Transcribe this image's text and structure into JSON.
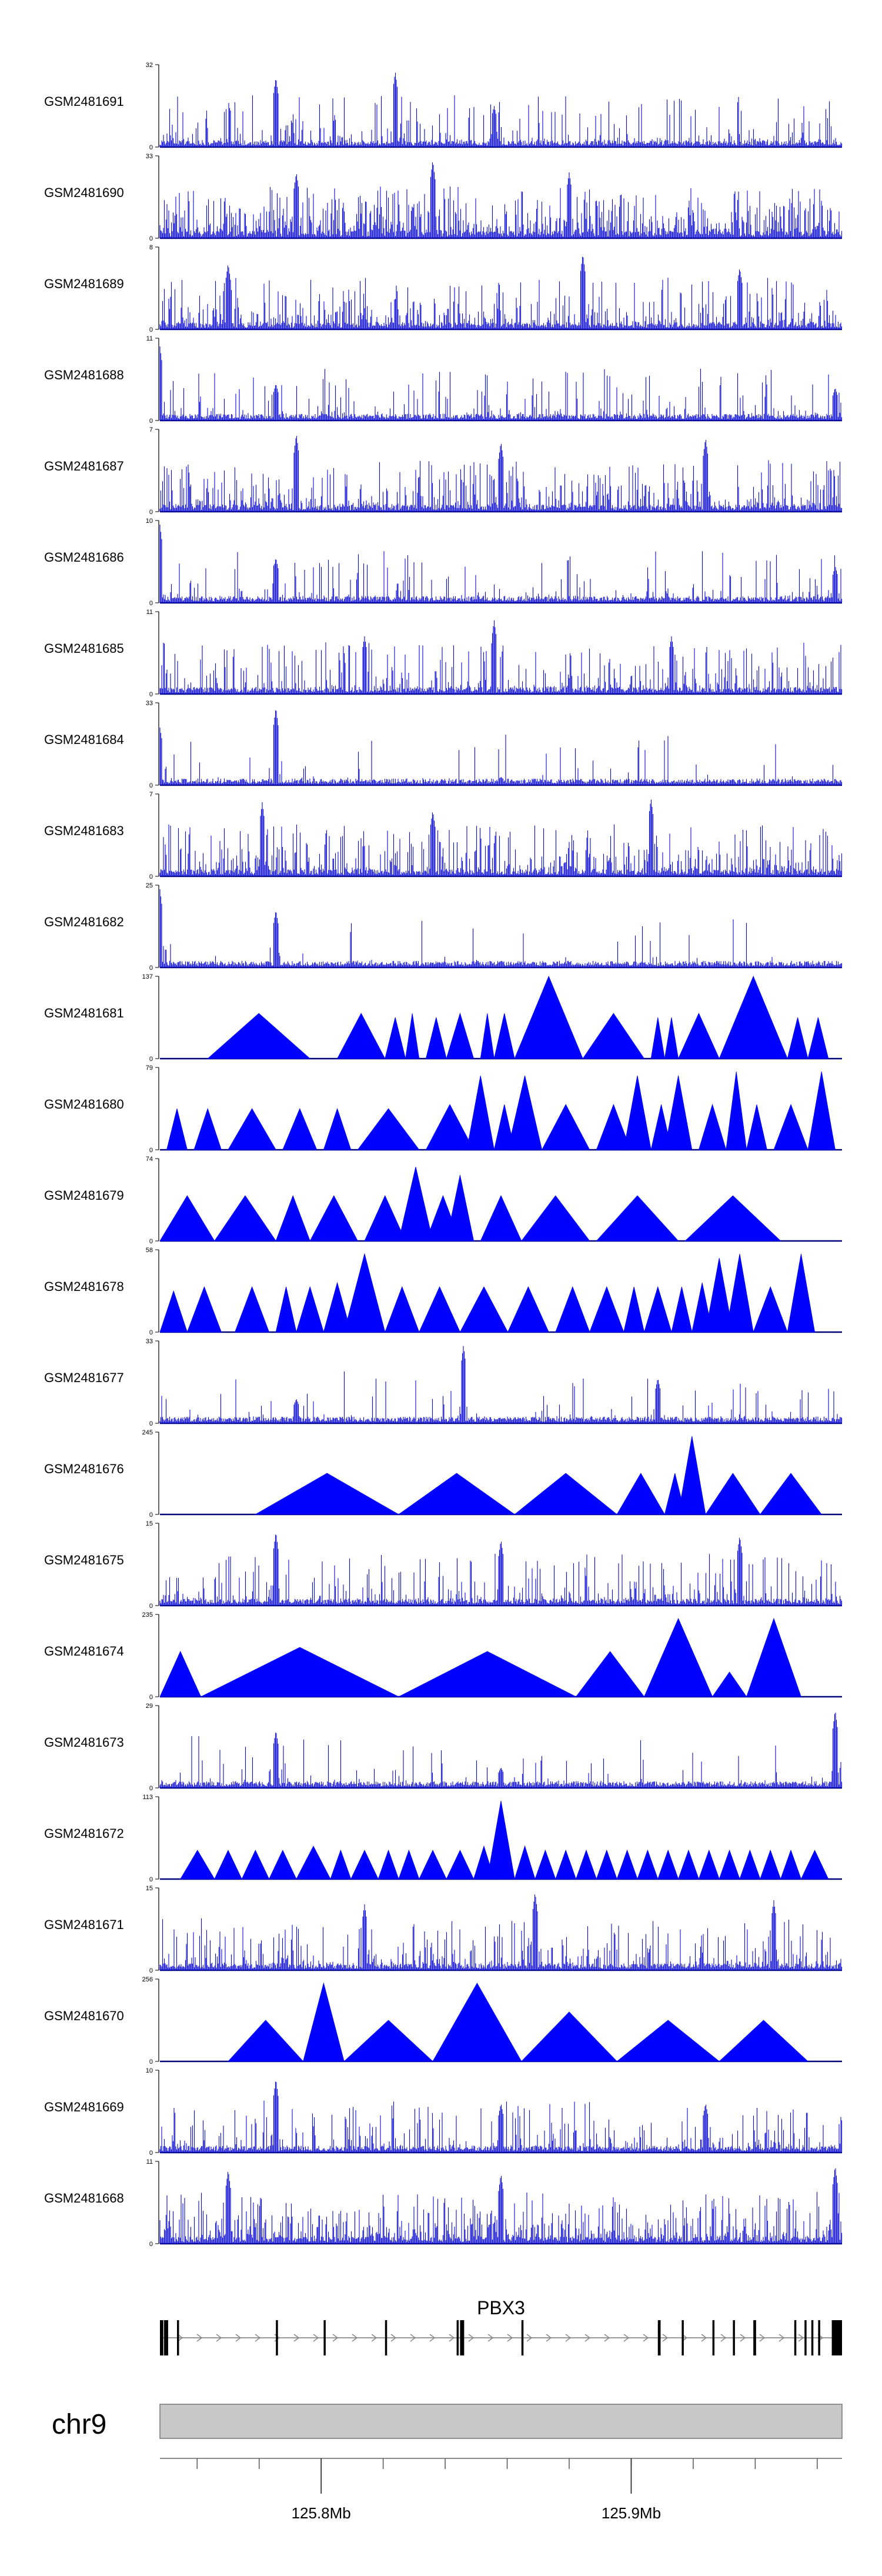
{
  "chart_data": {
    "type": "area",
    "title": "",
    "chromosome": "chr9",
    "gene_label": "PBX3",
    "xlim": [
      125.748,
      125.968
    ],
    "x_ticks": [
      {
        "value": 125.8,
        "label": "125.8Mb"
      },
      {
        "value": 125.9,
        "label": "125.9Mb"
      }
    ],
    "tracks": [
      {
        "name": "GSM2481691",
        "ymax": "32",
        "style": "dense",
        "density": 0.3,
        "peaks": [
          [
            0.17,
            0.85
          ],
          [
            0.345,
            0.92
          ],
          [
            0.49,
            0.5
          ]
        ]
      },
      {
        "name": "GSM2481690",
        "ymax": "33",
        "style": "dense",
        "density": 0.65,
        "peaks": [
          [
            0.4,
            0.95
          ],
          [
            0.2,
            0.8
          ],
          [
            0.6,
            0.8
          ]
        ]
      },
      {
        "name": "GSM2481689",
        "ymax": "8",
        "style": "dense",
        "density": 0.45,
        "peaks": [
          [
            0.62,
            0.92
          ],
          [
            0.1,
            0.8
          ],
          [
            0.85,
            0.75
          ]
        ]
      },
      {
        "name": "GSM2481688",
        "ymax": "11",
        "style": "dense",
        "density": 0.22,
        "peaks": [
          [
            0.0,
            0.9
          ],
          [
            0.17,
            0.45
          ],
          [
            0.99,
            0.4
          ]
        ]
      },
      {
        "name": "GSM2481687",
        "ymax": "7",
        "style": "dense",
        "density": 0.55,
        "peaks": [
          [
            0.2,
            0.95
          ],
          [
            0.5,
            0.85
          ],
          [
            0.8,
            0.9
          ]
        ]
      },
      {
        "name": "GSM2481686",
        "ymax": "10",
        "style": "dense",
        "density": 0.22,
        "peaks": [
          [
            0.0,
            0.95
          ],
          [
            0.17,
            0.55
          ],
          [
            0.99,
            0.45
          ]
        ]
      },
      {
        "name": "GSM2481685",
        "ymax": "11",
        "style": "dense",
        "density": 0.4,
        "peaks": [
          [
            0.49,
            0.9
          ],
          [
            0.3,
            0.7
          ],
          [
            0.75,
            0.7
          ]
        ]
      },
      {
        "name": "GSM2481684",
        "ymax": "33",
        "style": "dense",
        "density": 0.05,
        "peaks": [
          [
            0.0,
            0.7
          ],
          [
            0.17,
            0.95
          ],
          [
            0.5,
            0.1
          ]
        ]
      },
      {
        "name": "GSM2481683",
        "ymax": "7",
        "style": "dense",
        "density": 0.5,
        "peaks": [
          [
            0.15,
            0.9
          ],
          [
            0.72,
            0.95
          ],
          [
            0.4,
            0.8
          ]
        ]
      },
      {
        "name": "GSM2481682",
        "ymax": "25",
        "style": "dense",
        "density": 0.05,
        "peaks": [
          [
            0.0,
            0.95
          ],
          [
            0.17,
            0.7
          ],
          [
            0.5,
            0.08
          ]
        ]
      },
      {
        "name": "GSM2481681",
        "ymax": "137",
        "style": "tri",
        "tris": [
          [
            0.07,
            0.22,
            0.55
          ],
          [
            0.26,
            0.33,
            0.55
          ],
          [
            0.33,
            0.36,
            0.5
          ],
          [
            0.36,
            0.38,
            0.55
          ],
          [
            0.39,
            0.42,
            0.5
          ],
          [
            0.42,
            0.46,
            0.55
          ],
          [
            0.47,
            0.49,
            0.55
          ],
          [
            0.49,
            0.52,
            0.55
          ],
          [
            0.52,
            0.62,
            1.0
          ],
          [
            0.62,
            0.71,
            0.55
          ],
          [
            0.72,
            0.74,
            0.5
          ],
          [
            0.74,
            0.76,
            0.5
          ],
          [
            0.76,
            0.82,
            0.55
          ],
          [
            0.82,
            0.92,
            1.0
          ],
          [
            0.92,
            0.95,
            0.5
          ],
          [
            0.95,
            0.98,
            0.5
          ]
        ]
      },
      {
        "name": "GSM2481680",
        "ymax": "79",
        "style": "tri",
        "tris": [
          [
            0.01,
            0.04,
            0.5
          ],
          [
            0.05,
            0.09,
            0.5
          ],
          [
            0.1,
            0.17,
            0.5
          ],
          [
            0.18,
            0.23,
            0.5
          ],
          [
            0.24,
            0.28,
            0.5
          ],
          [
            0.29,
            0.38,
            0.5
          ],
          [
            0.39,
            0.46,
            0.55
          ],
          [
            0.45,
            0.49,
            0.9
          ],
          [
            0.49,
            0.52,
            0.55
          ],
          [
            0.51,
            0.56,
            0.9
          ],
          [
            0.56,
            0.63,
            0.55
          ],
          [
            0.64,
            0.69,
            0.55
          ],
          [
            0.68,
            0.72,
            0.9
          ],
          [
            0.72,
            0.75,
            0.55
          ],
          [
            0.74,
            0.78,
            0.9
          ],
          [
            0.79,
            0.83,
            0.55
          ],
          [
            0.83,
            0.86,
            0.95
          ],
          [
            0.86,
            0.89,
            0.55
          ],
          [
            0.9,
            0.95,
            0.55
          ],
          [
            0.95,
            0.99,
            0.95
          ]
        ]
      },
      {
        "name": "GSM2481679",
        "ymax": "74",
        "style": "tri",
        "tris": [
          [
            0.0,
            0.08,
            0.55
          ],
          [
            0.08,
            0.17,
            0.55
          ],
          [
            0.17,
            0.22,
            0.55
          ],
          [
            0.22,
            0.29,
            0.55
          ],
          [
            0.3,
            0.36,
            0.55
          ],
          [
            0.35,
            0.4,
            0.9
          ],
          [
            0.39,
            0.44,
            0.55
          ],
          [
            0.42,
            0.46,
            0.8
          ],
          [
            0.47,
            0.53,
            0.55
          ],
          [
            0.53,
            0.63,
            0.55
          ],
          [
            0.64,
            0.76,
            0.55
          ],
          [
            0.77,
            0.91,
            0.55
          ]
        ]
      },
      {
        "name": "GSM2481678",
        "ymax": "58",
        "style": "tri",
        "tris": [
          [
            0.0,
            0.04,
            0.5
          ],
          [
            0.04,
            0.09,
            0.55
          ],
          [
            0.11,
            0.16,
            0.55
          ],
          [
            0.17,
            0.2,
            0.55
          ],
          [
            0.2,
            0.24,
            0.55
          ],
          [
            0.24,
            0.28,
            0.6
          ],
          [
            0.27,
            0.33,
            0.95
          ],
          [
            0.33,
            0.38,
            0.55
          ],
          [
            0.38,
            0.44,
            0.55
          ],
          [
            0.44,
            0.51,
            0.55
          ],
          [
            0.51,
            0.57,
            0.55
          ],
          [
            0.58,
            0.63,
            0.55
          ],
          [
            0.63,
            0.68,
            0.55
          ],
          [
            0.68,
            0.71,
            0.55
          ],
          [
            0.71,
            0.75,
            0.55
          ],
          [
            0.75,
            0.78,
            0.55
          ],
          [
            0.78,
            0.81,
            0.6
          ],
          [
            0.8,
            0.84,
            0.9
          ],
          [
            0.83,
            0.87,
            0.95
          ],
          [
            0.87,
            0.92,
            0.55
          ],
          [
            0.92,
            0.96,
            0.95
          ]
        ]
      },
      {
        "name": "GSM2481677",
        "ymax": "33",
        "style": "dense",
        "density": 0.1,
        "peaks": [
          [
            0.445,
            0.95
          ],
          [
            0.73,
            0.55
          ],
          [
            0.2,
            0.3
          ]
        ]
      },
      {
        "name": "GSM2481676",
        "ymax": "245",
        "style": "tri",
        "tris": [
          [
            0.14,
            0.35,
            0.5
          ],
          [
            0.35,
            0.52,
            0.5
          ],
          [
            0.52,
            0.67,
            0.5
          ],
          [
            0.67,
            0.74,
            0.5
          ],
          [
            0.74,
            0.77,
            0.5
          ],
          [
            0.76,
            0.8,
            0.95
          ],
          [
            0.8,
            0.88,
            0.5
          ],
          [
            0.88,
            0.97,
            0.5
          ]
        ]
      },
      {
        "name": "GSM2481675",
        "ymax": "15",
        "style": "dense",
        "density": 0.3,
        "peaks": [
          [
            0.17,
            0.9
          ],
          [
            0.5,
            0.8
          ],
          [
            0.85,
            0.85
          ]
        ]
      },
      {
        "name": "GSM2481674",
        "ymax": "235",
        "style": "tri",
        "tris": [
          [
            0.0,
            0.06,
            0.55
          ],
          [
            0.06,
            0.35,
            0.6
          ],
          [
            0.35,
            0.61,
            0.55
          ],
          [
            0.61,
            0.71,
            0.55
          ],
          [
            0.71,
            0.81,
            0.95
          ],
          [
            0.81,
            0.86,
            0.3
          ],
          [
            0.86,
            0.94,
            0.95
          ]
        ]
      },
      {
        "name": "GSM2481673",
        "ymax": "29",
        "style": "dense",
        "density": 0.1,
        "peaks": [
          [
            0.17,
            0.7
          ],
          [
            0.99,
            0.95
          ],
          [
            0.5,
            0.25
          ]
        ]
      },
      {
        "name": "GSM2481672",
        "ymax": "113",
        "style": "tri",
        "tris": [
          [
            0.03,
            0.08,
            0.35
          ],
          [
            0.08,
            0.12,
            0.35
          ],
          [
            0.12,
            0.16,
            0.35
          ],
          [
            0.16,
            0.2,
            0.35
          ],
          [
            0.2,
            0.25,
            0.4
          ],
          [
            0.25,
            0.28,
            0.35
          ],
          [
            0.28,
            0.32,
            0.35
          ],
          [
            0.32,
            0.35,
            0.35
          ],
          [
            0.35,
            0.38,
            0.35
          ],
          [
            0.38,
            0.42,
            0.35
          ],
          [
            0.42,
            0.46,
            0.35
          ],
          [
            0.46,
            0.49,
            0.4
          ],
          [
            0.48,
            0.52,
            0.95
          ],
          [
            0.52,
            0.55,
            0.4
          ],
          [
            0.55,
            0.58,
            0.35
          ],
          [
            0.58,
            0.61,
            0.35
          ],
          [
            0.61,
            0.64,
            0.35
          ],
          [
            0.64,
            0.67,
            0.35
          ],
          [
            0.67,
            0.7,
            0.35
          ],
          [
            0.7,
            0.73,
            0.35
          ],
          [
            0.73,
            0.76,
            0.35
          ],
          [
            0.76,
            0.79,
            0.35
          ],
          [
            0.79,
            0.82,
            0.35
          ],
          [
            0.82,
            0.85,
            0.35
          ],
          [
            0.85,
            0.88,
            0.35
          ],
          [
            0.88,
            0.91,
            0.35
          ],
          [
            0.91,
            0.94,
            0.35
          ],
          [
            0.94,
            0.98,
            0.35
          ]
        ]
      },
      {
        "name": "GSM2481671",
        "ymax": "15",
        "style": "dense",
        "density": 0.4,
        "peaks": [
          [
            0.55,
            0.95
          ],
          [
            0.3,
            0.8
          ],
          [
            0.9,
            0.85
          ]
        ]
      },
      {
        "name": "GSM2481670",
        "ymax": "256",
        "style": "tri",
        "tris": [
          [
            0.1,
            0.21,
            0.5
          ],
          [
            0.21,
            0.27,
            0.95
          ],
          [
            0.27,
            0.4,
            0.5
          ],
          [
            0.4,
            0.53,
            0.95
          ],
          [
            0.53,
            0.67,
            0.6
          ],
          [
            0.67,
            0.82,
            0.5
          ],
          [
            0.82,
            0.95,
            0.5
          ]
        ]
      },
      {
        "name": "GSM2481669",
        "ymax": "10",
        "style": "dense",
        "density": 0.3,
        "peaks": [
          [
            0.17,
            0.9
          ],
          [
            0.5,
            0.6
          ],
          [
            0.8,
            0.6
          ]
        ]
      },
      {
        "name": "GSM2481668",
        "ymax": "11",
        "style": "dense",
        "density": 0.55,
        "peaks": [
          [
            0.1,
            0.9
          ],
          [
            0.5,
            0.85
          ],
          [
            0.99,
            0.95
          ]
        ]
      }
    ]
  }
}
